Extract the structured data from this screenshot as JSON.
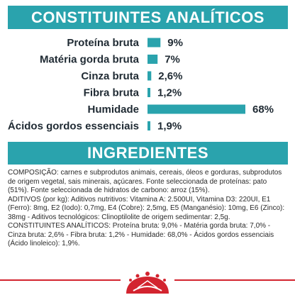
{
  "header_constituents": "CONSTITUINTES ANALÍTICOS",
  "header_ingredients": "INGREDIENTES",
  "chart_data": {
    "type": "bar",
    "orientation": "horizontal",
    "categories": [
      "Proteína bruta",
      "Matéria gorda bruta",
      "Cinza bruta",
      "Fibra bruta",
      "Humidade",
      "Ácidos gordos essenciais"
    ],
    "values": [
      9,
      7,
      2.6,
      1.2,
      68,
      1.9
    ],
    "value_labels": [
      "9%",
      "7%",
      "2,6%",
      "1,2%",
      "68%",
      "1,9%"
    ],
    "xlim": [
      0,
      100
    ],
    "grid": false,
    "legend": "none",
    "bar_color": "#2aa3ad"
  },
  "ingredients_text": [
    "COMPOSIÇÃO: carnes e subprodutos animais, cereais, óleos e gorduras, subprodutos de origem vegetal, sais minerais, açúcares. Fonte seleccionada de proteínas: pato (51%). Fonte seleccionada de hidratos de carbono: arroz (15%).",
    " ADITIVOS (por kg): Aditivos nutritivos: Vitamina A: 2.500UI, Vitamina D3: 220UI, E1 (Ferro): 8mg, E2 (Iodo): 0,7mg, E4 (Cobre): 2,5mg, E5 (Manganésio): 10mg, E6 (Zinco): 38mg - Aditivos tecnológicos: Clinoptilolite de origem sedimentar: 2,5g.",
    " CONSTITUINTES ANALÍTICOS: Proteína bruta: 9,0% - Matéria gorda bruta: 7,0% - Cinza bruta: 2,6% - Fibra bruta: 1,2% - Humidade: 68,0% - Ácidos gordos essenciais (Ácido linoleico): 1,9%."
  ],
  "colors": {
    "accent": "#2aa3ad",
    "brand_red": "#d3242f"
  },
  "logo_icon": "royal-canin-crown-icon"
}
